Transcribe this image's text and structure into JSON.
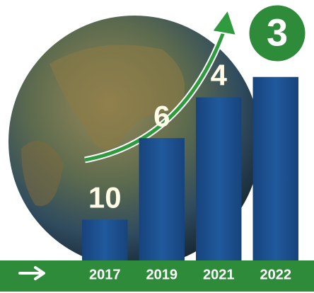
{
  "chart_data": {
    "type": "bar",
    "categories": [
      "2017",
      "2019",
      "2021",
      "2022"
    ],
    "values": [
      10,
      6,
      4,
      3
    ],
    "color": "#1d4f8f",
    "ylim": [
      12,
      2
    ]
  }
}
